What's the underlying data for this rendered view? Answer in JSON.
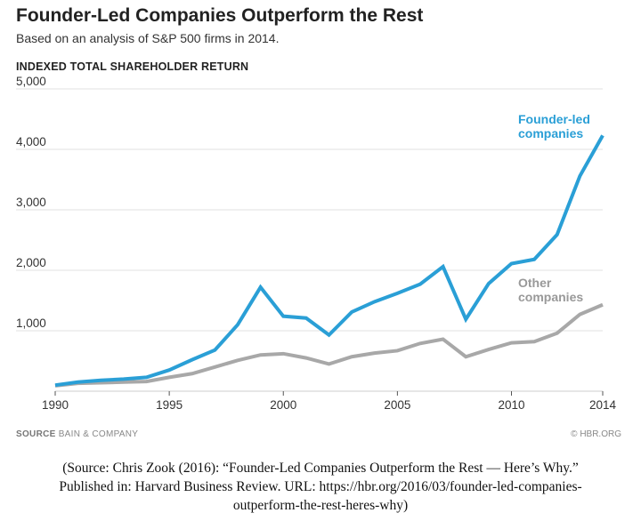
{
  "chart_data": {
    "type": "line",
    "title": "Founder-Led Companies Outperform the Rest",
    "subtitle": "Based on an analysis of S&P 500 firms in 2014.",
    "ylabel": "INDEXED TOTAL SHAREHOLDER RETURN",
    "xlabel": "",
    "ylim": [
      0,
      5000
    ],
    "xlim": [
      1990,
      2014
    ],
    "yticks": [
      "5,000",
      "4,000",
      "3,000",
      "2,000",
      "1,000"
    ],
    "yticks_values": [
      5000,
      4000,
      3000,
      2000,
      1000
    ],
    "xticks": [
      "1990",
      "1995",
      "2000",
      "2005",
      "2010",
      "2014"
    ],
    "grid": true,
    "x": [
      1990,
      1991,
      1992,
      1993,
      1994,
      1995,
      1996,
      1997,
      1998,
      1999,
      2000,
      2001,
      2002,
      2003,
      2004,
      2005,
      2006,
      2007,
      2008,
      2009,
      2010,
      2011,
      2012,
      2013,
      2014
    ],
    "series": [
      {
        "name": "Founder-led companies",
        "name_lines": [
          "Founder-led",
          "companies"
        ],
        "color": "#2a9fd6",
        "values": [
          100,
          150,
          180,
          200,
          230,
          350,
          520,
          680,
          1100,
          1720,
          1240,
          1210,
          930,
          1310,
          1480,
          1620,
          1770,
          2060,
          1190,
          1780,
          2110,
          2180,
          2590,
          3560,
          4230
        ]
      },
      {
        "name": "Other companies",
        "name_lines": [
          "Other",
          "companies"
        ],
        "color": "#a8a8a8",
        "values": [
          90,
          130,
          140,
          150,
          160,
          230,
          290,
          400,
          510,
          600,
          620,
          550,
          450,
          570,
          630,
          670,
          790,
          860,
          570,
          690,
          800,
          820,
          960,
          1270,
          1430
        ]
      }
    ]
  },
  "footer": {
    "source_label": "SOURCE",
    "source": "BAIN & COMPANY",
    "credit": "© HBR.ORG"
  },
  "citation": [
    "(Source: Chris Zook (2016): “Founder-Led Companies Outperform the Rest — Here’s Why.”",
    "Published in: Harvard Business Review. URL: https://hbr.org/2016/03/founder-led-companies-",
    "outperform-the-rest-heres-why)"
  ]
}
